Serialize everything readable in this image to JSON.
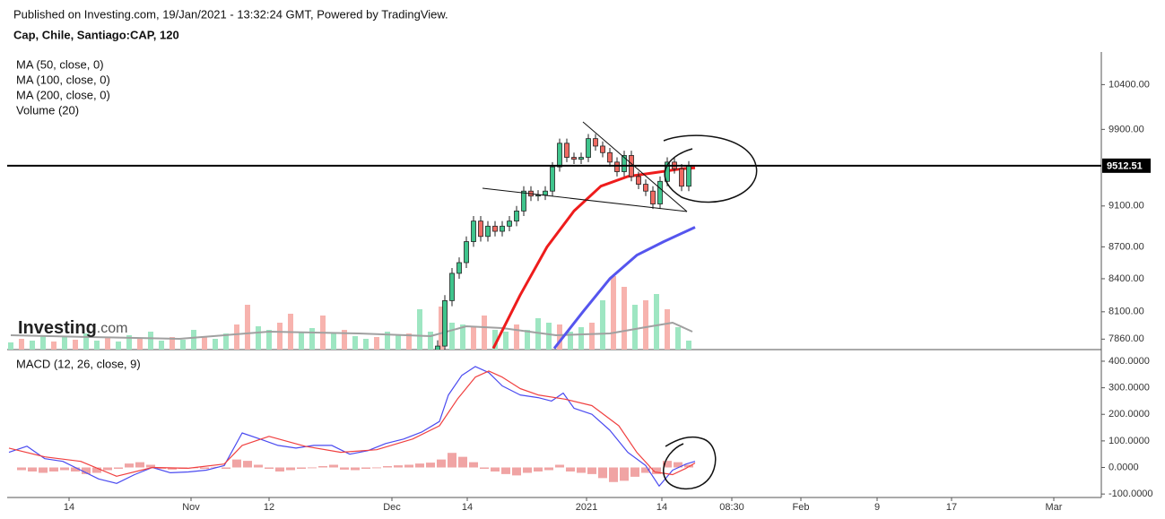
{
  "header": {
    "published": "Published on Investing.com, 19/Jan/2021 - 13:32:24 GMT, Powered by TradingView.",
    "logo": "Investing",
    "logo_suffix": ".com"
  },
  "chart_data": [
    {
      "type": "candlestick",
      "title": "Cap, Chile, Santiago:CAP, 120",
      "log_scale": true,
      "xlim": [
        0,
        122
      ],
      "ylim": [
        7770,
        10780
      ],
      "yticks": [
        {
          "value": 10400,
          "label": "10400.00"
        },
        {
          "value": 9900,
          "label": "9900.00"
        },
        {
          "value": 9100,
          "label": "9100.00"
        },
        {
          "value": 8700,
          "label": "8700.00"
        },
        {
          "value": 8400,
          "label": "8400.00"
        },
        {
          "value": 8100,
          "label": "8100.00"
        },
        {
          "value": 7860,
          "label": "7860.00"
        }
      ],
      "up_color": "#3fc48c",
      "down_color": "#f06a62",
      "last_price": 9512.51,
      "x": [
        48,
        48.8,
        49.6,
        50.4,
        51.2,
        52,
        52.8,
        53.6,
        54.4,
        55.2,
        56,
        56.8,
        57.6,
        58.4,
        59.2,
        60,
        60.8,
        61.6,
        62.4,
        63.2,
        64,
        64.8,
        65.6,
        66.4,
        67.2,
        68,
        68.8,
        69.6,
        70.4,
        71.2,
        72,
        72.8,
        73.6,
        74.4,
        75.2,
        76
      ],
      "open": [
        7700,
        7800,
        8200,
        8450,
        8550,
        8750,
        8950,
        8800,
        8900,
        8850,
        8900,
        8950,
        9050,
        9250,
        9200,
        9210,
        9250,
        9500,
        9750,
        9600,
        9580,
        9600,
        9800,
        9720,
        9650,
        9550,
        9450,
        9620,
        9400,
        9320,
        9250,
        9120,
        9350,
        9550,
        9480,
        9300
      ],
      "high": [
        7850,
        8250,
        8500,
        8600,
        8800,
        9000,
        9000,
        8950,
        8950,
        8950,
        9000,
        9100,
        9300,
        9300,
        9260,
        9300,
        9550,
        9800,
        9800,
        9650,
        9650,
        9850,
        9850,
        9770,
        9700,
        9600,
        9670,
        9670,
        9450,
        9370,
        9300,
        9400,
        9600,
        9600,
        9530,
        9560
      ],
      "low": [
        7650,
        7750,
        8150,
        8400,
        8500,
        8700,
        8750,
        8750,
        8800,
        8800,
        8850,
        8900,
        9000,
        9150,
        9150,
        9160,
        9200,
        9450,
        9550,
        9530,
        9530,
        9550,
        9670,
        9600,
        9500,
        9400,
        9400,
        9350,
        9270,
        9200,
        9070,
        9070,
        9300,
        9430,
        9250,
        9250
      ],
      "close": [
        7800,
        8200,
        8450,
        8550,
        8750,
        8950,
        8800,
        8900,
        8850,
        8900,
        8950,
        9050,
        9250,
        9200,
        9210,
        9250,
        9500,
        9750,
        9600,
        9580,
        9600,
        9800,
        9720,
        9650,
        9550,
        9450,
        9620,
        9400,
        9320,
        9250,
        9120,
        9350,
        9550,
        9480,
        9300,
        9512
      ],
      "series": [
        {
          "name": "MA (50, close, 0)",
          "color": "#ee1c1c",
          "x": [
            54.2,
            57.2,
            60.2,
            63.2,
            66.2,
            69.2,
            72.2,
            75.2,
            76.7
          ],
          "values": [
            7780,
            8250,
            8700,
            9050,
            9300,
            9400,
            9440,
            9480,
            9490
          ]
        },
        {
          "name": "MA (100, close, 0)",
          "color": "#5555ee",
          "x": [
            61,
            64.2,
            67.2,
            70.2,
            73.2,
            76.7
          ],
          "values": [
            7780,
            8100,
            8400,
            8620,
            8750,
            8890
          ]
        },
        {
          "name": "MA (200, close, 0)",
          "x": [],
          "values": []
        }
      ],
      "volume": {
        "name": "Volume (20)",
        "ylim": [
          0,
          100
        ],
        "up_color": "#9ee6c2",
        "down_color": "#f7b3ae",
        "x": [
          0.4,
          1.6,
          2.8,
          4,
          5.2,
          6.4,
          7.6,
          8.8,
          10,
          11.2,
          12.4,
          13.6,
          14.8,
          16,
          17.2,
          18.4,
          19.6,
          20.8,
          22,
          23.2,
          24.4,
          25.6,
          26.8,
          28,
          29.2,
          30.4,
          31.6,
          32.8,
          34,
          35.2,
          36.4,
          37.6,
          38.8,
          40,
          41.2,
          42.4,
          43.6,
          44.8,
          46,
          47.2,
          48.4,
          49.6,
          50.8,
          52,
          53.2,
          54.4,
          55.6,
          56.8,
          58,
          59.2,
          60.4,
          61.6,
          62.8,
          64,
          65.2,
          66.4,
          67.6,
          68.8,
          70,
          71.2,
          72.4,
          73.6,
          74.8,
          76
        ],
        "values": [
          8,
          12,
          10,
          15,
          9,
          14,
          11,
          18,
          10,
          13,
          9,
          16,
          12,
          20,
          10,
          14,
          11,
          22,
          15,
          12,
          18,
          28,
          50,
          26,
          22,
          30,
          40,
          20,
          24,
          38,
          18,
          22,
          15,
          12,
          14,
          20,
          16,
          18,
          45,
          20,
          48,
          30,
          28,
          25,
          38,
          22,
          20,
          28,
          22,
          35,
          30,
          28,
          20,
          25,
          30,
          55,
          82,
          70,
          50,
          55,
          62,
          45,
          25,
          10
        ],
        "rising": [
          true,
          false,
          true,
          true,
          false,
          true,
          false,
          true,
          true,
          false,
          true,
          true,
          false,
          true,
          true,
          false,
          true,
          true,
          false,
          true,
          true,
          false,
          false,
          true,
          true,
          false,
          false,
          true,
          true,
          false,
          true,
          false,
          true,
          true,
          false,
          true,
          true,
          false,
          true,
          true,
          false,
          true,
          true,
          false,
          false,
          true,
          true,
          false,
          true,
          true,
          true,
          false,
          true,
          true,
          false,
          true,
          false,
          false,
          true,
          false,
          true,
          false,
          true,
          true
        ],
        "average": {
          "color": "#a0a0a0",
          "x": [
            0.4,
            9.2,
            19.2,
            29.2,
            39.2,
            47.2,
            51.2,
            55.2,
            61.2,
            67.2,
            71.2,
            74.2,
            76.4
          ],
          "values": [
            16,
            14,
            12,
            20,
            18,
            15,
            26,
            24,
            16,
            18,
            25,
            30,
            20
          ]
        }
      }
    },
    {
      "type": "line",
      "title": "MACD (12, 26, close, 9)",
      "xlim": [
        0,
        122
      ],
      "ylim": [
        -113,
        437
      ],
      "yticks": [
        {
          "value": 400,
          "label": "400.0000"
        },
        {
          "value": 300,
          "label": "300.0000"
        },
        {
          "value": 200,
          "label": "200.0000"
        },
        {
          "value": 100,
          "label": "100.0000"
        },
        {
          "value": 0,
          "label": "0.0000"
        },
        {
          "value": -100,
          "label": "-100.0000"
        }
      ],
      "xticks": [
        {
          "value": 6.9,
          "label": "14"
        },
        {
          "value": 20.5,
          "label": "Nov"
        },
        {
          "value": 29.2,
          "label": "12"
        },
        {
          "value": 42.9,
          "label": "Dec"
        },
        {
          "value": 51.3,
          "label": "14"
        },
        {
          "value": 64.6,
          "label": "2021"
        },
        {
          "value": 73,
          "label": "14"
        },
        {
          "value": 80.8,
          "label": "08:30"
        },
        {
          "value": 88.5,
          "label": "Feb"
        },
        {
          "value": 97,
          "label": "9"
        },
        {
          "value": 105.3,
          "label": "17"
        },
        {
          "value": 116.7,
          "label": "Mar"
        }
      ],
      "series": [
        {
          "color": "#4a4af0",
          "x": [
            0.2,
            2.2,
            4.2,
            6.2,
            8.2,
            10.2,
            12.2,
            14.2,
            16.2,
            18.2,
            20.2,
            22.2,
            24.2,
            26.2,
            28.2,
            30.2,
            32.2,
            34.2,
            36.2,
            38.2,
            40.2,
            42.2,
            44.2,
            46.2,
            48.2,
            49.2,
            50.7,
            52.2,
            53.7,
            55.2,
            57.2,
            59.2,
            60.7,
            62,
            63.2,
            65.2,
            67.2,
            69.2,
            71.2,
            72.7,
            74.2,
            75.7,
            76.7
          ],
          "values": [
            57,
            80,
            33,
            23,
            -10,
            -43,
            -60,
            -27,
            0,
            -20,
            -17,
            -10,
            7,
            130,
            107,
            83,
            73,
            83,
            83,
            50,
            63,
            90,
            107,
            133,
            173,
            273,
            347,
            380,
            357,
            307,
            273,
            263,
            250,
            280,
            223,
            200,
            140,
            57,
            7,
            -70,
            -10,
            13,
            23
          ]
        },
        {
          "color": "#f04040",
          "x": [
            0.2,
            4.2,
            8.2,
            12.2,
            16.2,
            20.2,
            24.2,
            26.2,
            29.2,
            33.2,
            37.2,
            41.2,
            45.2,
            48.2,
            50.2,
            52.2,
            53.7,
            55.2,
            57.2,
            59.2,
            62.2,
            65.2,
            68.2,
            70.2,
            72.2,
            74.2,
            75.7,
            76.7
          ],
          "values": [
            73,
            40,
            23,
            -33,
            0,
            -3,
            13,
            83,
            117,
            80,
            57,
            67,
            107,
            157,
            257,
            340,
            363,
            340,
            297,
            273,
            257,
            233,
            157,
            57,
            -17,
            -27,
            -3,
            17
          ]
        }
      ],
      "histogram": {
        "color": "#e04848",
        "x": [
          1.6,
          2.8,
          4,
          5.2,
          6.4,
          7.6,
          8.8,
          10,
          11.2,
          12.4,
          13.6,
          14.8,
          16,
          17.2,
          18.4,
          19.6,
          20.8,
          22,
          23.2,
          24.4,
          25.6,
          26.8,
          28,
          29.2,
          30.4,
          31.6,
          32.8,
          34,
          35.2,
          36.4,
          37.6,
          38.8,
          40,
          41.2,
          42.4,
          43.6,
          44.8,
          46,
          47.2,
          48.4,
          49.6,
          50.8,
          52,
          53.2,
          54.4,
          55.6,
          56.8,
          58,
          59.2,
          60.4,
          61.6,
          62.8,
          64,
          65.2,
          66.4,
          67.6,
          68.8,
          70,
          71.2,
          72.4,
          73.6,
          74.8,
          76
        ],
        "values": [
          -10,
          -15,
          -20,
          -15,
          -10,
          -15,
          -25,
          -20,
          -10,
          -5,
          15,
          20,
          10,
          -5,
          -8,
          -5,
          -3,
          -5,
          2,
          -5,
          30,
          25,
          10,
          -5,
          -15,
          -10,
          -5,
          -3,
          5,
          10,
          -8,
          -10,
          -5,
          -3,
          5,
          8,
          10,
          15,
          18,
          30,
          55,
          40,
          20,
          -5,
          -15,
          -25,
          -30,
          -20,
          -15,
          -10,
          10,
          -15,
          -20,
          -25,
          -40,
          -55,
          -50,
          -35,
          -20,
          -25,
          25,
          20,
          10
        ]
      }
    }
  ]
}
